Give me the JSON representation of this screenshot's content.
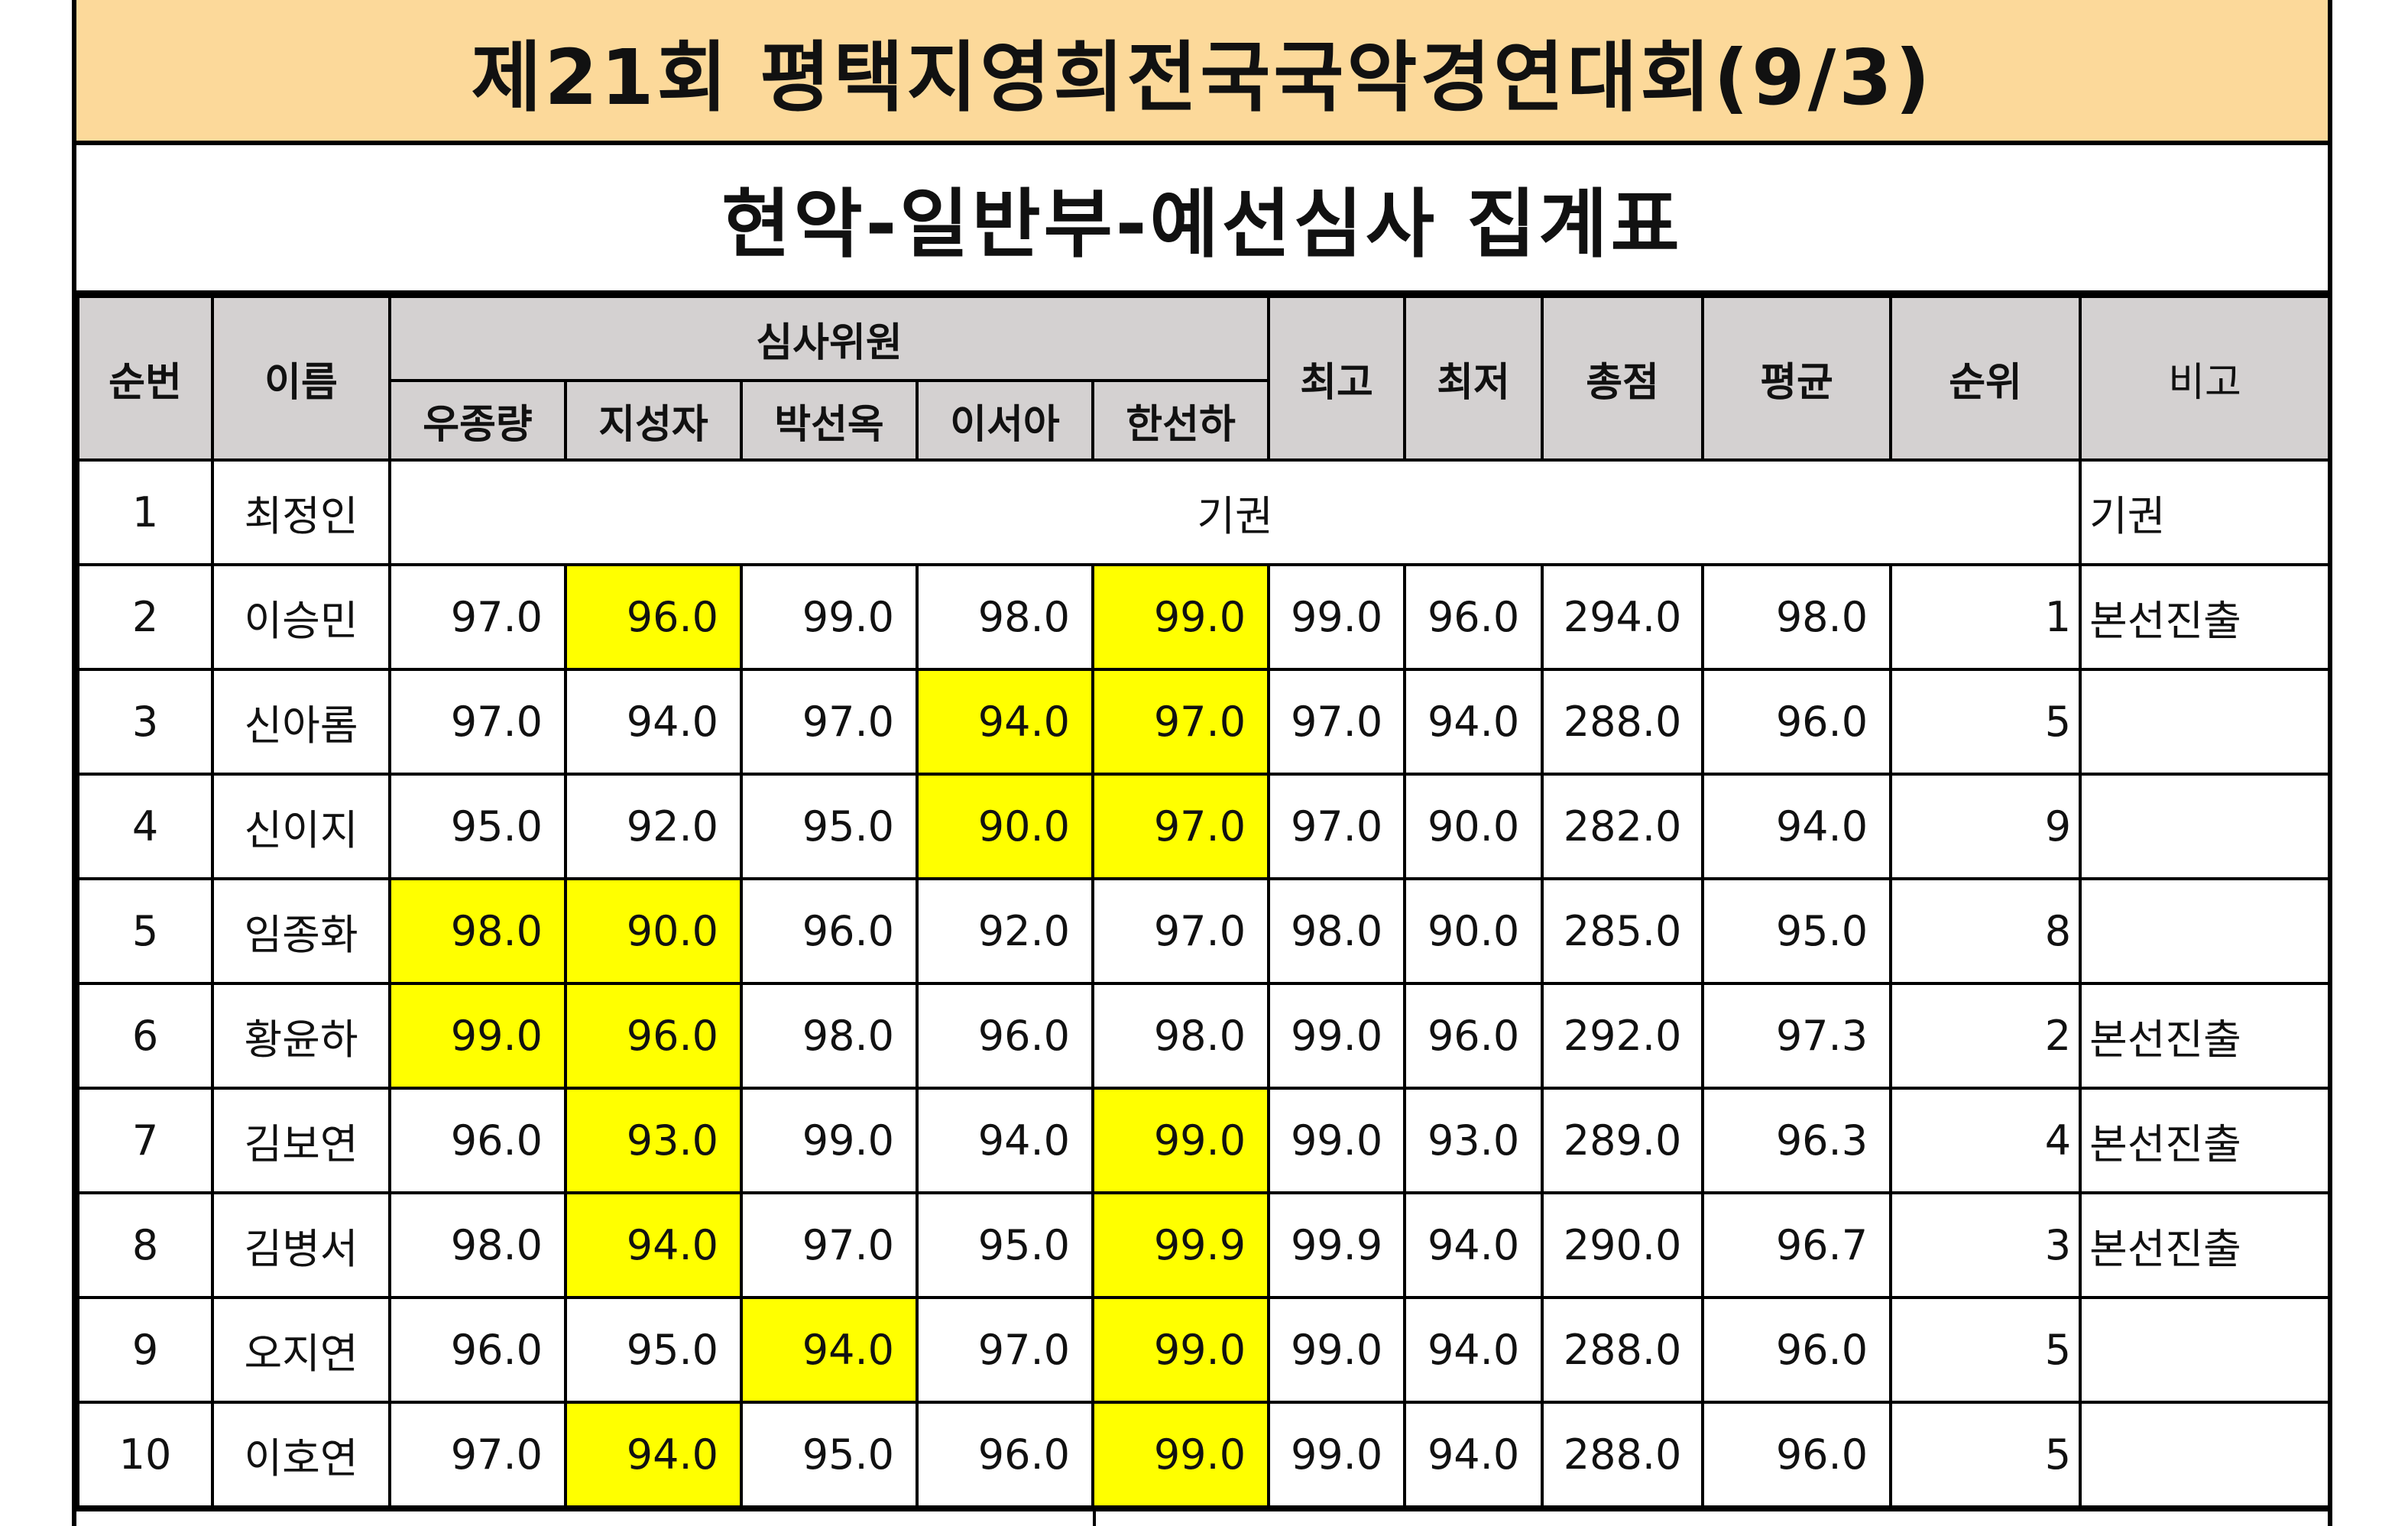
{
  "title": "제21회 평택지영희전국국악경연대회(9/3)",
  "subtitle": "현악-일반부-예선심사 집계표",
  "headers": {
    "no": "순번",
    "name": "이름",
    "judges_group": "심사위원",
    "judges": [
      "우종량",
      "지성자",
      "박선옥",
      "이서아",
      "한선하"
    ],
    "max": "최고",
    "min": "최저",
    "total": "총점",
    "avg": "평균",
    "rank": "순위",
    "note": "비고"
  },
  "rows": [
    {
      "no": "1",
      "name": "최정인",
      "abstain": "기권",
      "note": "기권"
    },
    {
      "no": "2",
      "name": "이승민",
      "scores": [
        "97.0",
        "96.0",
        "99.0",
        "98.0",
        "99.0"
      ],
      "highlight": [
        false,
        true,
        false,
        false,
        true
      ],
      "max": "99.0",
      "min": "96.0",
      "total": "294.0",
      "avg": "98.0",
      "rank": "1",
      "note": "본선진출"
    },
    {
      "no": "3",
      "name": "신아롬",
      "scores": [
        "97.0",
        "94.0",
        "97.0",
        "94.0",
        "97.0"
      ],
      "highlight": [
        false,
        false,
        false,
        true,
        true
      ],
      "max": "97.0",
      "min": "94.0",
      "total": "288.0",
      "avg": "96.0",
      "rank": "5",
      "note": ""
    },
    {
      "no": "4",
      "name": "신이지",
      "scores": [
        "95.0",
        "92.0",
        "95.0",
        "90.0",
        "97.0"
      ],
      "highlight": [
        false,
        false,
        false,
        true,
        true
      ],
      "max": "97.0",
      "min": "90.0",
      "total": "282.0",
      "avg": "94.0",
      "rank": "9",
      "note": ""
    },
    {
      "no": "5",
      "name": "임종화",
      "scores": [
        "98.0",
        "90.0",
        "96.0",
        "92.0",
        "97.0"
      ],
      "highlight": [
        true,
        true,
        false,
        false,
        false
      ],
      "max": "98.0",
      "min": "90.0",
      "total": "285.0",
      "avg": "95.0",
      "rank": "8",
      "note": ""
    },
    {
      "no": "6",
      "name": "황윤하",
      "scores": [
        "99.0",
        "96.0",
        "98.0",
        "96.0",
        "98.0"
      ],
      "highlight": [
        true,
        true,
        false,
        false,
        false
      ],
      "max": "99.0",
      "min": "96.0",
      "total": "292.0",
      "avg": "97.3",
      "rank": "2",
      "note": "본선진출"
    },
    {
      "no": "7",
      "name": "김보연",
      "scores": [
        "96.0",
        "93.0",
        "99.0",
        "94.0",
        "99.0"
      ],
      "highlight": [
        false,
        true,
        false,
        false,
        true
      ],
      "max": "99.0",
      "min": "93.0",
      "total": "289.0",
      "avg": "96.3",
      "rank": "4",
      "note": "본선진출"
    },
    {
      "no": "8",
      "name": "김병서",
      "scores": [
        "98.0",
        "94.0",
        "97.0",
        "95.0",
        "99.9"
      ],
      "highlight": [
        false,
        true,
        false,
        false,
        true
      ],
      "max": "99.9",
      "min": "94.0",
      "total": "290.0",
      "avg": "96.7",
      "rank": "3",
      "note": "본선진출"
    },
    {
      "no": "9",
      "name": "오지연",
      "scores": [
        "96.0",
        "95.0",
        "94.0",
        "97.0",
        "99.0"
      ],
      "highlight": [
        false,
        false,
        true,
        false,
        true
      ],
      "max": "99.0",
      "min": "94.0",
      "total": "288.0",
      "avg": "96.0",
      "rank": "5",
      "note": ""
    },
    {
      "no": "10",
      "name": "이호연",
      "scores": [
        "97.0",
        "94.0",
        "95.0",
        "96.0",
        "99.0"
      ],
      "highlight": [
        false,
        true,
        false,
        false,
        true
      ],
      "max": "99.0",
      "min": "94.0",
      "total": "288.0",
      "avg": "96.0",
      "rank": "5",
      "note": ""
    }
  ],
  "colors": {
    "title_bg": "#fcd99a",
    "header_bg": "#d4d1d1",
    "highlight": "#ffff00"
  }
}
